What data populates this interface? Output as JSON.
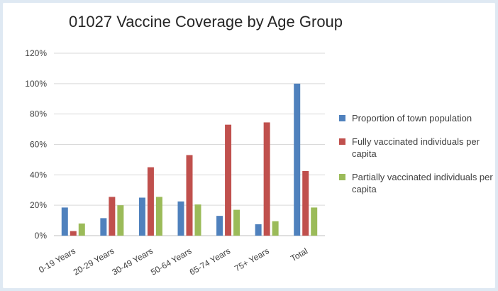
{
  "chart_data": {
    "type": "bar",
    "title": "01027 Vaccine Coverage by Age Group",
    "categories": [
      "0-19 Years",
      "20-29 Years",
      "30-49 Years",
      "50-64 Years",
      "65-74 Years",
      "75+ Years",
      "Total"
    ],
    "y_ticks": [
      "0%",
      "20%",
      "40%",
      "60%",
      "80%",
      "100%",
      "120%"
    ],
    "ylim": [
      0,
      120
    ],
    "y_unit": "percent",
    "grid": true,
    "legend_position": "right",
    "series": [
      {
        "name": "Proportion of town population",
        "color": "#4f81bd",
        "values": [
          18.5,
          11.5,
          25,
          22.5,
          13,
          7.5,
          100
        ]
      },
      {
        "name": "Fully vaccinated individuals per capita",
        "color": "#c0504d",
        "values": [
          3,
          25.5,
          45,
          53,
          73,
          74.5,
          42.5
        ]
      },
      {
        "name": "Partially vaccinated individuals per capita",
        "color": "#9bbb59",
        "values": [
          8,
          20,
          25.5,
          20.5,
          17,
          9.5,
          18.5
        ]
      }
    ]
  }
}
